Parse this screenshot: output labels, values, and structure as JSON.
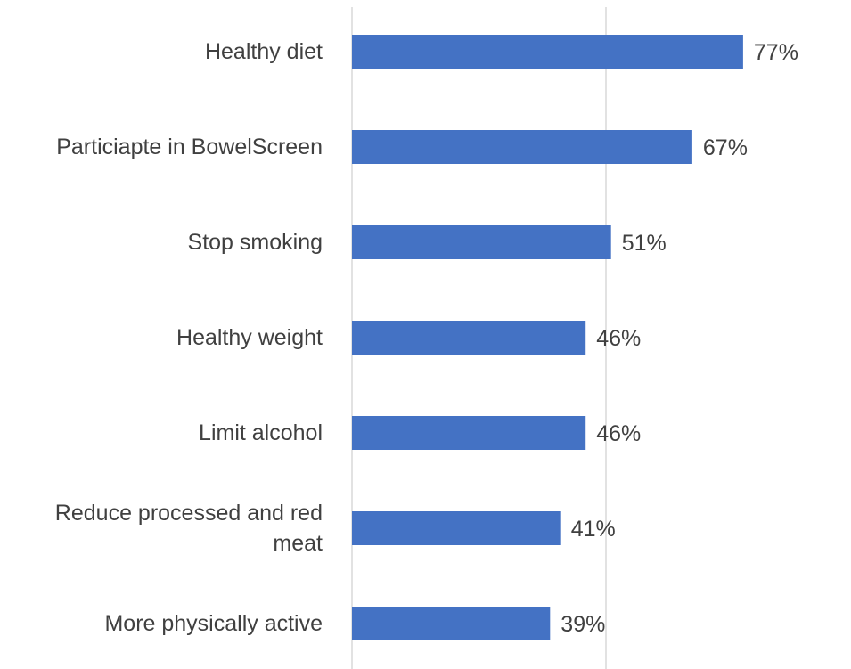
{
  "chart_data": {
    "type": "bar",
    "orientation": "horizontal",
    "categories": [
      "Healthy diet",
      "Particiapte in BowelScreen",
      "Stop smoking",
      "Healthy weight",
      "Limit alcohol",
      "Reduce processed and red meat",
      "More physically active"
    ],
    "category_label_lines": [
      [
        "Healthy diet"
      ],
      [
        "Particiapte in BowelScreen"
      ],
      [
        "Stop smoking"
      ],
      [
        "Healthy weight"
      ],
      [
        "Limit alcohol"
      ],
      [
        "Reduce processed and red",
        "meat"
      ],
      [
        "More physically active"
      ]
    ],
    "values": [
      77,
      67,
      51,
      46,
      46,
      41,
      39
    ],
    "value_labels": [
      "77%",
      "67%",
      "51%",
      "46%",
      "46%",
      "41%",
      "39%"
    ],
    "xlim": [
      0,
      100
    ],
    "gridlines_at": [
      0,
      50
    ],
    "grid": true,
    "legend": false,
    "bar_color": "#4472c4",
    "title": "",
    "xlabel": "",
    "ylabel": ""
  }
}
